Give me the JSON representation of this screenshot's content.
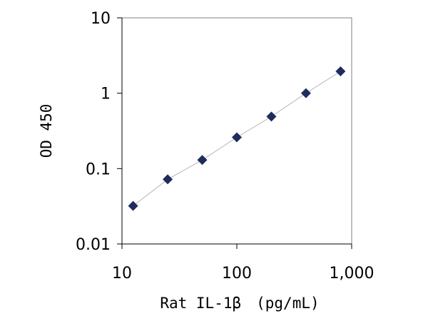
{
  "chart_data": {
    "type": "scatter",
    "title": "",
    "xlabel": "Rat IL-1β　(pg/mL)",
    "ylabel": "OD 450",
    "x_scale": "log",
    "y_scale": "log",
    "xlim": [
      10,
      1000
    ],
    "ylim": [
      0.01,
      10
    ],
    "x_ticks": [
      10,
      100,
      1000
    ],
    "x_tick_labels": [
      "10",
      "100",
      "1,000"
    ],
    "y_ticks": [
      0.01,
      0.1,
      1,
      10
    ],
    "y_tick_labels": [
      "0.01",
      "0.1",
      "1",
      "10"
    ],
    "grid": false,
    "legend": "none",
    "series": [
      {
        "marker": "diamond",
        "marker_color": "#1f2d5c",
        "line_color": "#b5b5b5",
        "points": [
          {
            "x": 12.5,
            "y": 0.032
          },
          {
            "x": 25,
            "y": 0.072
          },
          {
            "x": 50,
            "y": 0.13
          },
          {
            "x": 100,
            "y": 0.26
          },
          {
            "x": 200,
            "y": 0.49
          },
          {
            "x": 400,
            "y": 1.0
          },
          {
            "x": 800,
            "y": 1.95
          }
        ]
      }
    ]
  }
}
